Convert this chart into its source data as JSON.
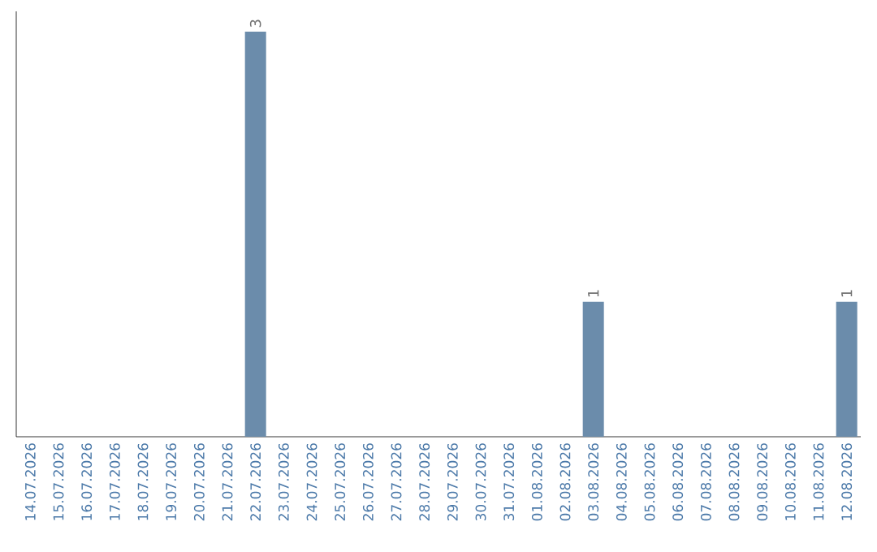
{
  "chart_data": {
    "type": "bar",
    "categories": [
      "14.07.2026",
      "15.07.2026",
      "16.07.2026",
      "17.07.2026",
      "18.07.2026",
      "19.07.2026",
      "20.07.2026",
      "21.07.2026",
      "22.07.2026",
      "23.07.2026",
      "24.07.2026",
      "25.07.2026",
      "26.07.2026",
      "27.07.2026",
      "28.07.2026",
      "29.07.2026",
      "30.07.2026",
      "31.07.2026",
      "01.08.2026",
      "02.08.2026",
      "03.08.2026",
      "04.08.2026",
      "05.08.2026",
      "06.08.2026",
      "07.08.2026",
      "08.08.2026",
      "09.08.2026",
      "10.08.2026",
      "11.08.2026",
      "12.08.2026"
    ],
    "values": [
      0,
      0,
      0,
      0,
      0,
      0,
      0,
      0,
      3,
      0,
      0,
      0,
      0,
      0,
      0,
      0,
      0,
      0,
      0,
      0,
      1,
      0,
      0,
      0,
      0,
      0,
      0,
      0,
      0,
      1
    ],
    "value_labels": [
      null,
      null,
      null,
      null,
      null,
      null,
      null,
      null,
      "3",
      null,
      null,
      null,
      null,
      null,
      null,
      null,
      null,
      null,
      null,
      null,
      "1",
      null,
      null,
      null,
      null,
      null,
      null,
      null,
      null,
      "1"
    ],
    "color": "#6b8cab",
    "ylim": [
      0,
      3.15
    ]
  }
}
